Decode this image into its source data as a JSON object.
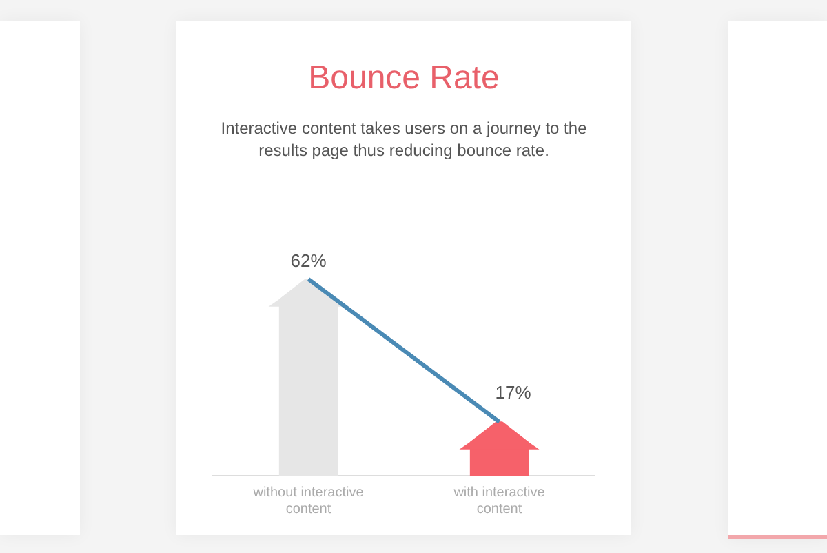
{
  "chart_data": {
    "type": "bar",
    "title": "Bounce Rate",
    "subtitle": "Interactive content takes users on a journey to the results page thus reducing bounce rate.",
    "categories": [
      "without interactive content",
      "with interactive content"
    ],
    "series": [
      {
        "colors": [
          "#e6e6e6",
          "#f6616a"
        ],
        "values": [
          62,
          17
        ],
        "value_labels": [
          "62%",
          "17%"
        ]
      },
      {
        "type": "line",
        "color": "#4a8ab5",
        "values": [
          62,
          17
        ]
      }
    ],
    "grid": false,
    "legend": false
  }
}
